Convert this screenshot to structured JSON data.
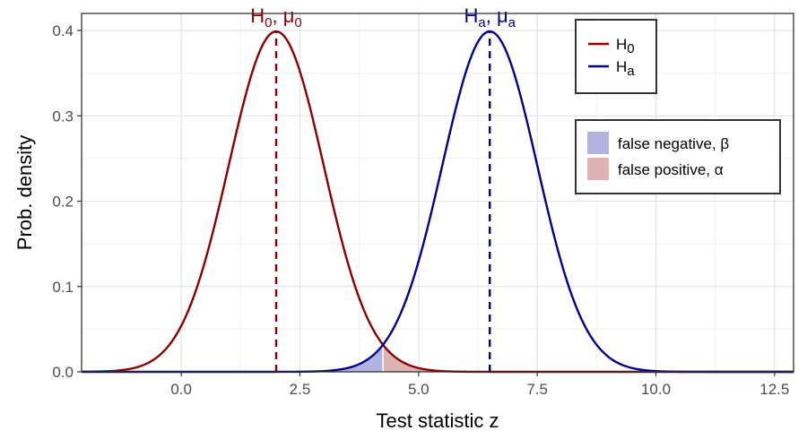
{
  "chart_data": {
    "type": "line",
    "xlabel": "Test statistic z",
    "ylabel": "Prob. density",
    "xlim": [
      -2.1,
      12.9
    ],
    "ylim": [
      0,
      0.42
    ],
    "x_ticks": [
      0,
      2.5,
      5,
      7.5,
      10,
      12.5
    ],
    "x_tick_labels": [
      "0.0",
      "2.5",
      "5.0",
      "7.5",
      "10.0",
      "12.5"
    ],
    "y_ticks": [
      0,
      0.1,
      0.2,
      0.3,
      0.4
    ],
    "y_tick_labels": [
      "0.0",
      "0.1",
      "0.2",
      "0.3",
      "0.4"
    ],
    "grid": true,
    "series": [
      {
        "name": "H0",
        "label_main": "H",
        "label_sub": "0",
        "distribution": "normal",
        "mean": 2,
        "sd": 1,
        "color": "#8b0000"
      },
      {
        "name": "Ha",
        "label_main": "H",
        "label_sub": "a",
        "distribution": "normal",
        "mean": 6.5,
        "sd": 1,
        "color": "#00008b"
      }
    ],
    "critical_value": 4.25,
    "peak_annotations": [
      {
        "text_main": "H",
        "text_sub": "0",
        "text_sep": ", ",
        "text_greek": "μ",
        "greek_sub": "0",
        "x": 2,
        "color": "#8b0000"
      },
      {
        "text_main": "H",
        "text_sub": "a",
        "text_sep": ", ",
        "text_greek": "μ",
        "greek_sub": "a",
        "x": 6.5,
        "color": "#00008b"
      }
    ],
    "legend_lines": {
      "position": "top-right",
      "items": [
        {
          "main": "H",
          "sub": "0",
          "color": "#8b0000"
        },
        {
          "main": "H",
          "sub": "a",
          "color": "#00008b"
        }
      ]
    },
    "legend_fills": {
      "position": "right",
      "items": [
        {
          "label": "false negative, β",
          "color": "#b3b3e0",
          "region": "Ha below critical value"
        },
        {
          "label": "false positive, α",
          "color": "#dbb3b3",
          "region": "H0 above critical value"
        }
      ]
    }
  }
}
